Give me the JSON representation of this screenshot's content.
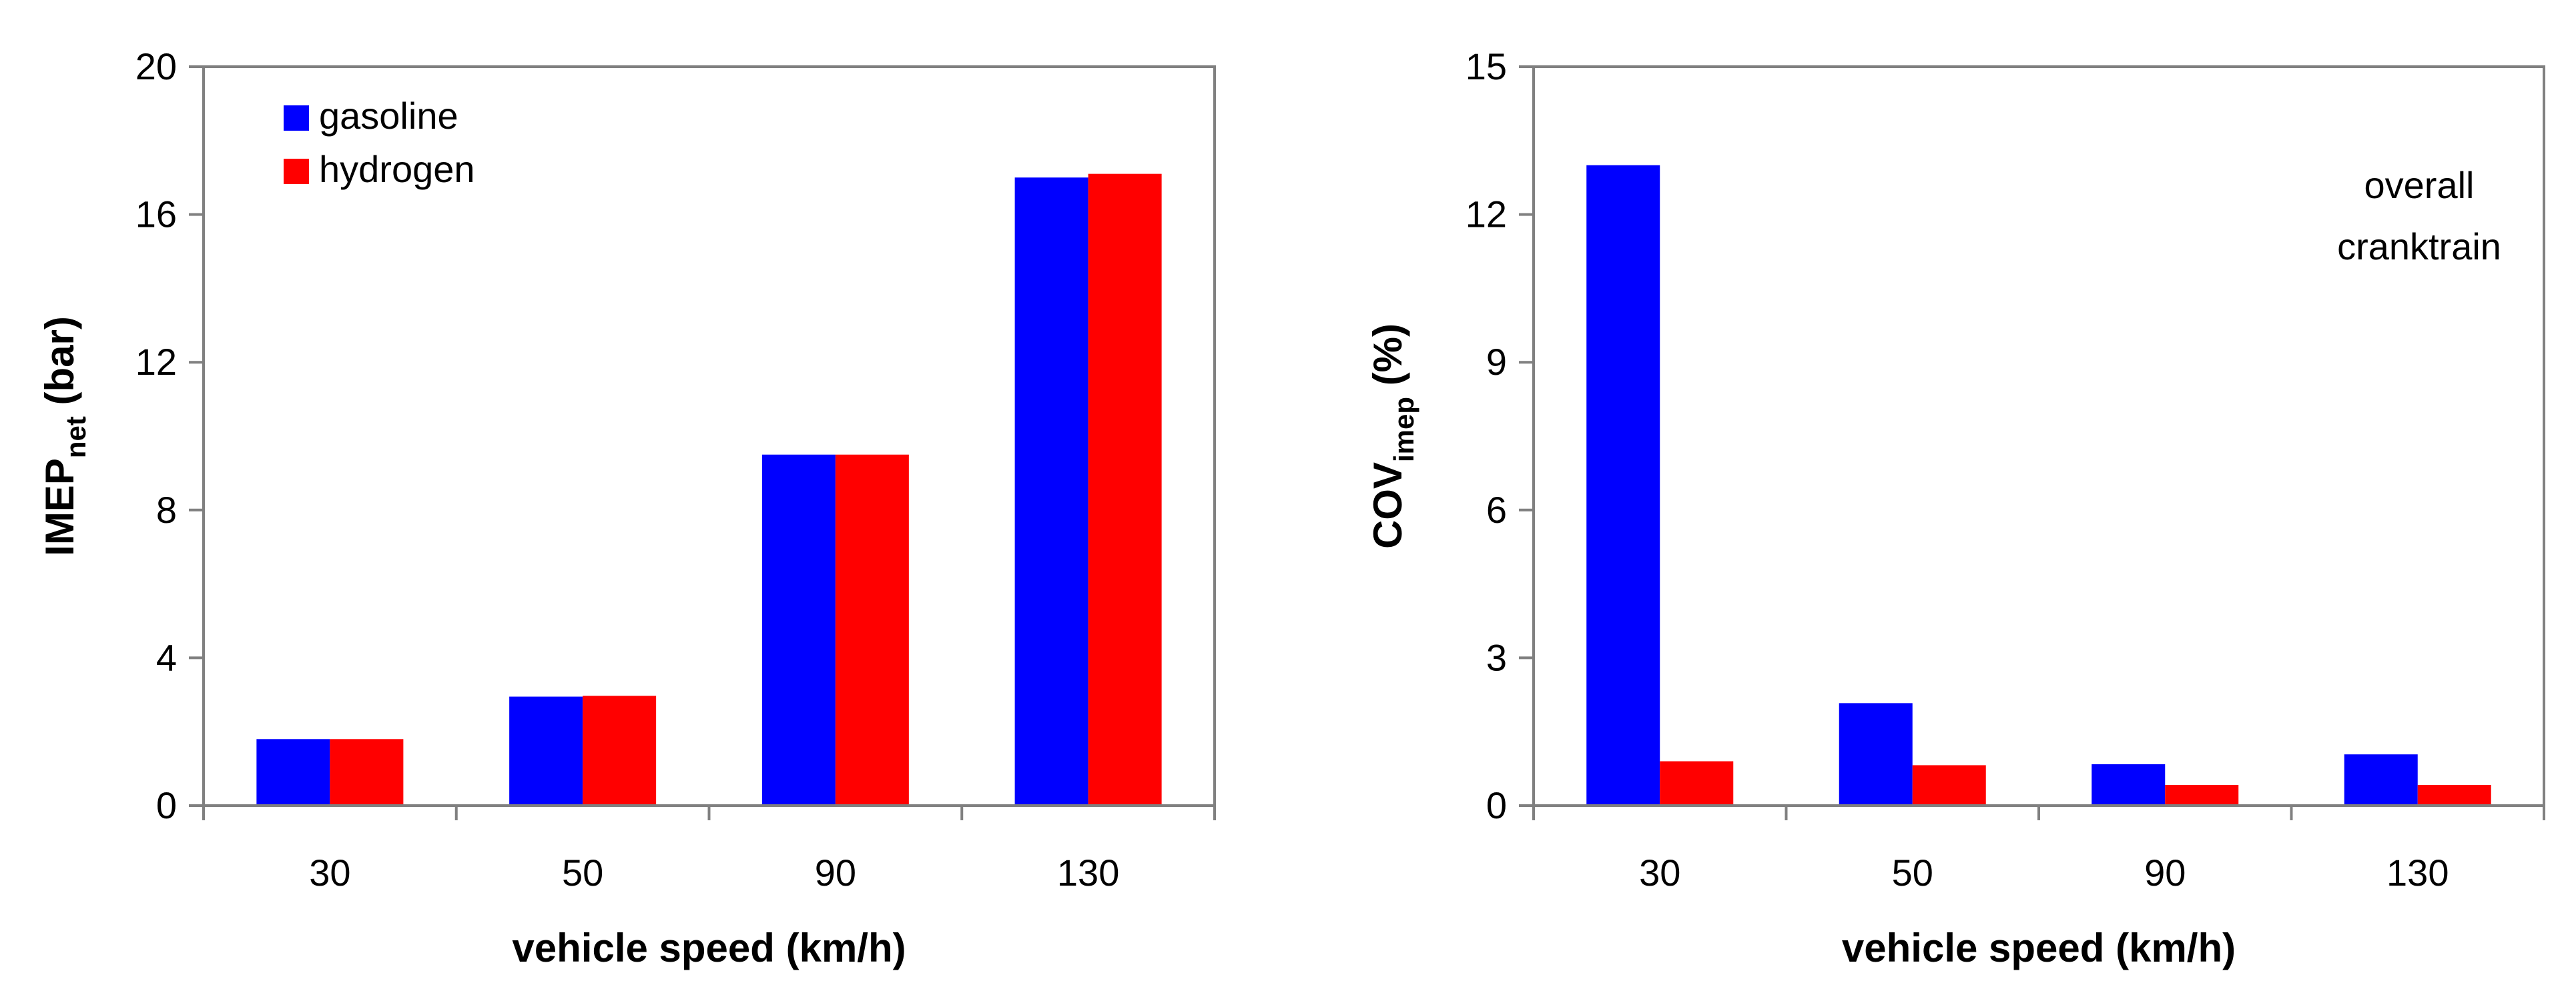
{
  "chart_data": [
    {
      "type": "bar",
      "categories": [
        "30",
        "50",
        "90",
        "130"
      ],
      "series": [
        {
          "name": "gasoline",
          "color": "#0000FF",
          "values": [
            1.8,
            2.95,
            9.5,
            17.0
          ]
        },
        {
          "name": "hydrogen",
          "color": "#FF0000",
          "values": [
            1.8,
            2.97,
            9.5,
            17.1
          ]
        }
      ],
      "ylim": [
        0,
        20
      ],
      "yticks": [
        "0",
        "4",
        "8",
        "12",
        "16",
        "20"
      ],
      "ytick_values": [
        0,
        4,
        8,
        12,
        16,
        20
      ],
      "ylabel": {
        "main": "IMEP",
        "sub": "net",
        "suffix": " (bar)"
      },
      "xlabel": "vehicle speed (km/h)",
      "legend": {
        "placement": "top-left",
        "entries": [
          "gasoline",
          "hydrogen"
        ]
      },
      "annotation": [],
      "grid": false
    },
    {
      "type": "bar",
      "categories": [
        "30",
        "50",
        "90",
        "130"
      ],
      "series": [
        {
          "name": "gasoline",
          "color": "#0000FF",
          "values": [
            13.0,
            2.08,
            0.84,
            1.04
          ]
        },
        {
          "name": "hydrogen",
          "color": "#FF0000",
          "values": [
            0.9,
            0.82,
            0.42,
            0.42
          ]
        }
      ],
      "ylim": [
        0,
        15
      ],
      "yticks": [
        "0",
        "3",
        "6",
        "9",
        "12",
        "15"
      ],
      "ytick_values": [
        0,
        3,
        6,
        9,
        12,
        15
      ],
      "ylabel": {
        "main": "COV",
        "sub": "imep",
        "suffix": " (%)"
      },
      "xlabel": "vehicle speed (km/h)",
      "legend": null,
      "annotation": [
        "overall",
        "cranktrain"
      ],
      "grid": false
    }
  ]
}
